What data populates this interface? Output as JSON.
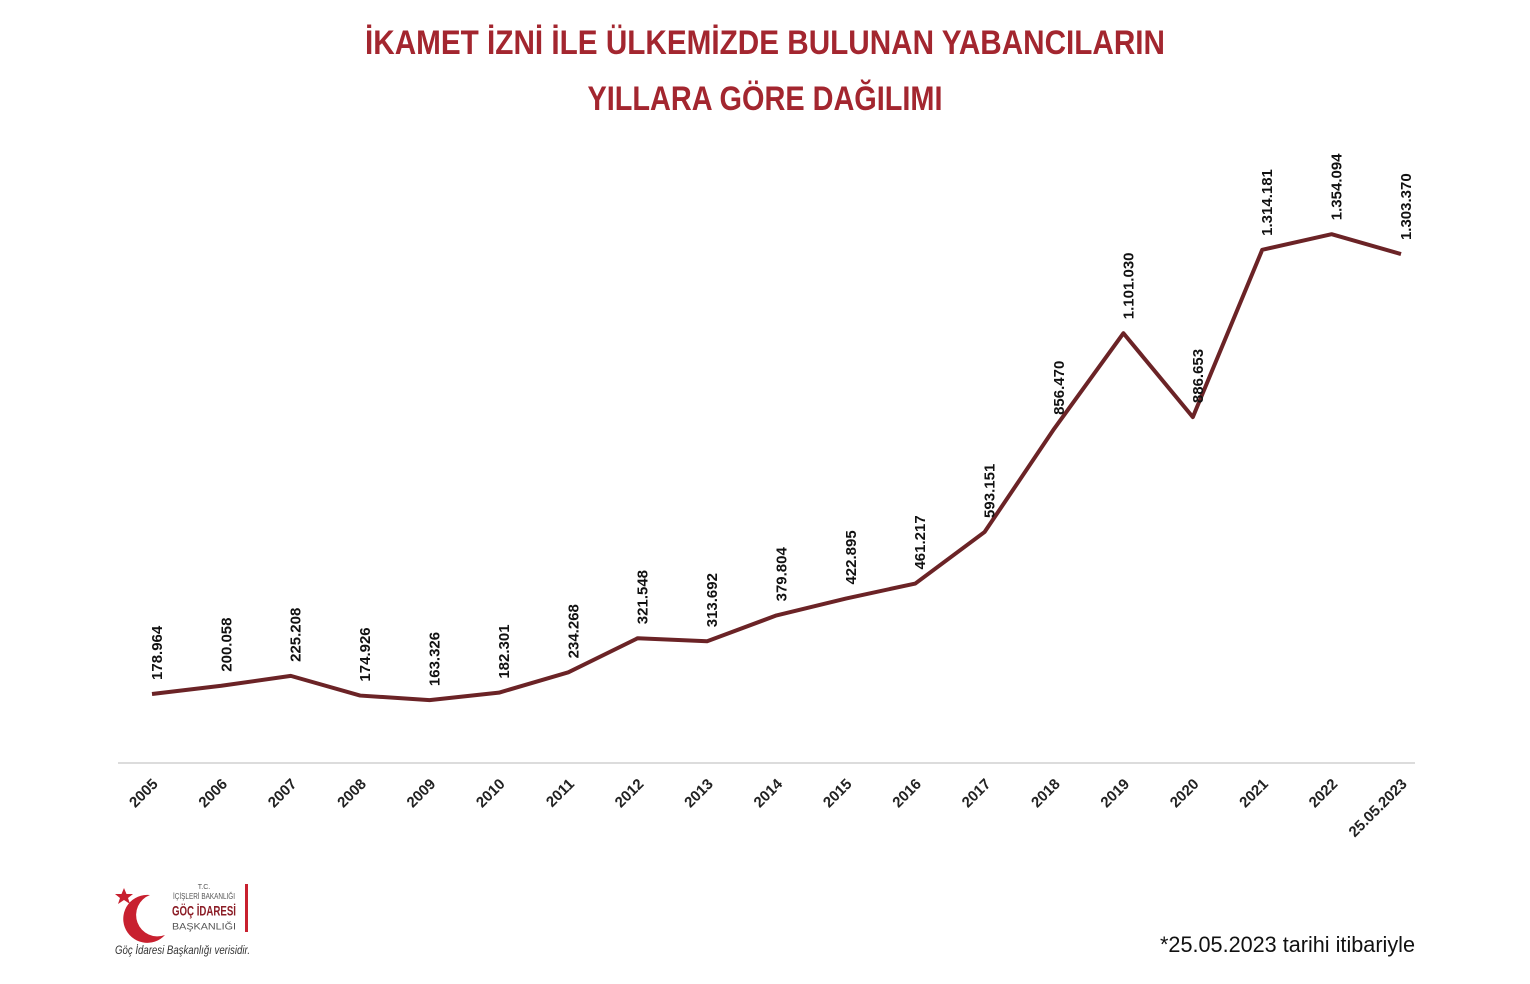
{
  "chart_data": {
    "type": "line",
    "title": [
      "İKAMET İZNİ İLE ÜLKEMİZDE BULUNAN YABANCILARIN",
      "YILLARA GÖRE DAĞILIMI"
    ],
    "categories": [
      "2005",
      "2006",
      "2007",
      "2008",
      "2009",
      "2010",
      "2011",
      "2012",
      "2013",
      "2014",
      "2015",
      "2016",
      "2017",
      "2018",
      "2019",
      "2020",
      "2021",
      "2022",
      "25.05.2023"
    ],
    "series": [
      {
        "name": "İkamet izni",
        "color": "#6b2326",
        "values": [
          178964,
          200058,
          225208,
          174926,
          163326,
          182301,
          234268,
          321548,
          313692,
          379804,
          422895,
          461217,
          593151,
          856470,
          1101030,
          886653,
          1314181,
          1354094,
          1303370
        ],
        "value_labels": [
          "178.964",
          "200.058",
          "225.208",
          "174.926",
          "163.326",
          "182.301",
          "234.268",
          "321.548",
          "313.692",
          "379.804",
          "422.895",
          "461.217",
          "593.151",
          "856.470",
          "1.101.030",
          "886.653",
          "1.314.181",
          "1.354.094",
          "1.303.370"
        ]
      }
    ],
    "ylim": [
      0,
      1600000
    ],
    "title_color": "#a3262f",
    "footnote": "*25.05.2023 tarihi itibariyle"
  },
  "logo": {
    "line1": "T.C.",
    "line2": "İÇİŞLERİ BAKANLIĞI",
    "line3": "GÖÇ İDARESİ",
    "line4": "BAŞKANLIĞI"
  },
  "source": "Göç İdaresi Başkanlığı verisidir."
}
